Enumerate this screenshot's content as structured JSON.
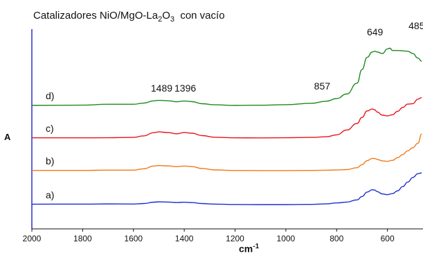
{
  "chart_data": {
    "type": "line",
    "title_main": "Catalizadores NiO/MgO-La",
    "title_sub1": "2",
    "title_mid": "O",
    "title_sub2": "3",
    "title_end": "  con vacío",
    "ylabel": "A",
    "xlabel_main": "cm",
    "xlabel_sup": "-1",
    "xlim": [
      2000,
      460
    ],
    "xticks": [
      2000,
      1800,
      1600,
      1400,
      1200,
      1000,
      800,
      600
    ],
    "grid": false,
    "series": [
      {
        "name": "a)",
        "color": "#1f2bd6",
        "x": [
          2000,
          1800,
          1700,
          1600,
          1560,
          1520,
          1500,
          1460,
          1430,
          1400,
          1370,
          1330,
          1280,
          1200,
          1100,
          1000,
          900,
          840,
          800,
          760,
          720,
          700,
          680,
          660,
          650,
          640,
          620,
          600,
          580,
          560,
          540,
          520,
          500,
          480,
          465
        ],
        "y": [
          0.5,
          0.6,
          0.9,
          0.7,
          1.4,
          3.2,
          3.6,
          3.3,
          2.8,
          3.1,
          2.6,
          1.4,
          0.6,
          0.2,
          0.0,
          0.0,
          0.3,
          1.0,
          2.2,
          3.3,
          6.2,
          10.5,
          16.5,
          19.5,
          19.0,
          17.0,
          14.0,
          13.0,
          14.5,
          18.0,
          23.5,
          29.5,
          35.5,
          40.5,
          41.5
        ]
      },
      {
        "name": "b)",
        "color": "#f07a1a",
        "x": [
          2000,
          1800,
          1700,
          1600,
          1560,
          1520,
          1500,
          1460,
          1430,
          1400,
          1370,
          1330,
          1280,
          1200,
          1100,
          1000,
          900,
          840,
          800,
          760,
          720,
          700,
          680,
          660,
          650,
          640,
          620,
          600,
          580,
          560,
          540,
          520,
          500,
          480,
          465
        ],
        "y": [
          0.3,
          0.3,
          0.6,
          0.6,
          2.4,
          6.0,
          6.6,
          6.1,
          5.2,
          6.0,
          5.3,
          2.8,
          0.9,
          0.2,
          0.1,
          0.1,
          0.3,
          0.5,
          0.8,
          1.4,
          3.8,
          7.8,
          13.0,
          16.0,
          15.8,
          14.6,
          12.8,
          12.2,
          13.5,
          17.0,
          21.0,
          26.0,
          30.0,
          36.0,
          48.0
        ]
      },
      {
        "name": "c)",
        "color": "#e8151c",
        "x": [
          2000,
          1800,
          1700,
          1600,
          1560,
          1520,
          1500,
          1460,
          1430,
          1400,
          1370,
          1330,
          1280,
          1200,
          1100,
          1000,
          900,
          840,
          800,
          760,
          720,
          700,
          680,
          660,
          650,
          640,
          620,
          600,
          580,
          560,
          540,
          520,
          500,
          480,
          465
        ],
        "y": [
          0.3,
          0.3,
          0.4,
          0.8,
          2.8,
          7.0,
          8.0,
          7.0,
          5.5,
          7.2,
          6.4,
          3.2,
          1.0,
          0.3,
          0.2,
          0.4,
          0.8,
          1.6,
          4.2,
          10.5,
          19.0,
          27.0,
          35.5,
          38.0,
          37.0,
          34.0,
          30.0,
          29.0,
          30.5,
          35.0,
          40.0,
          44.5,
          45.0,
          51.0,
          53.0
        ]
      },
      {
        "name": "d)",
        "color": "#1f8a1f",
        "x": [
          2000,
          1800,
          1700,
          1600,
          1560,
          1520,
          1500,
          1460,
          1430,
          1400,
          1370,
          1330,
          1280,
          1200,
          1100,
          1000,
          900,
          840,
          800,
          760,
          720,
          700,
          680,
          660,
          650,
          640,
          620,
          600,
          590,
          580,
          560,
          540,
          520,
          500,
          480,
          465
        ],
        "y": [
          0.0,
          0.4,
          1.5,
          1.5,
          3.0,
          6.0,
          6.6,
          6.0,
          4.8,
          5.7,
          5.0,
          2.3,
          0.8,
          0.0,
          0.3,
          1.0,
          2.8,
          5.5,
          9.0,
          15.0,
          29.0,
          47.0,
          63.0,
          70.0,
          71.0,
          70.0,
          68.0,
          74.0,
          75.0,
          72.0,
          72.0,
          71.5,
          71.0,
          68.0,
          62.0,
          58.0
        ]
      }
    ],
    "annotations": [
      {
        "text": "1489",
        "x": 1489
      },
      {
        "text": "1396",
        "x": 1396
      },
      {
        "text": "857",
        "x": 857
      },
      {
        "text": "649",
        "x": 649
      },
      {
        "text": "485",
        "x": 485
      }
    ]
  }
}
